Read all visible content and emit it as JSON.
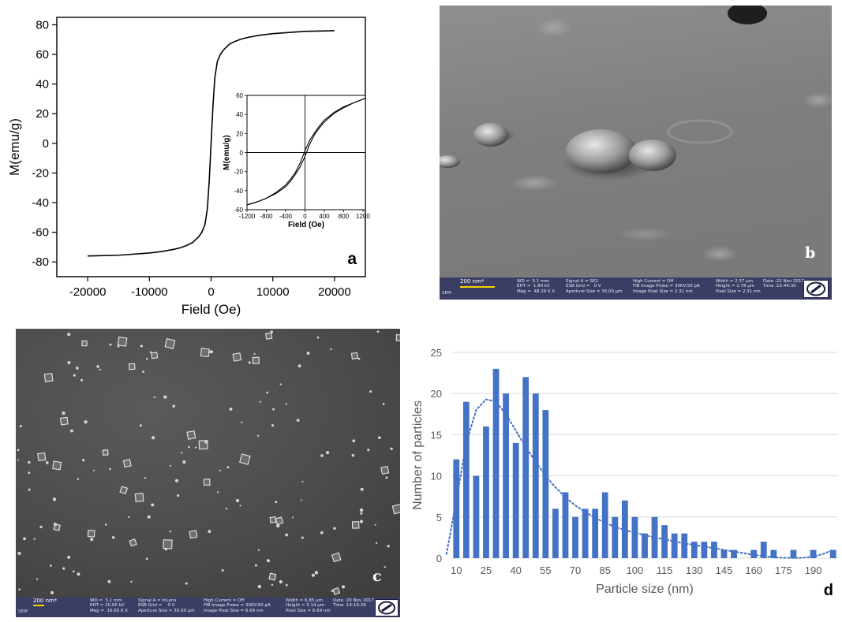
{
  "chart_data": [
    {
      "panel": "a",
      "type": "line",
      "xlabel": "Field (Oe)",
      "ylabel": "M(emu/g)",
      "xlim": [
        -25000,
        25000
      ],
      "ylim": [
        -90,
        85
      ],
      "x_ticks": [
        -20000,
        -10000,
        0,
        10000,
        20000
      ],
      "y_ticks": [
        -80,
        -60,
        -40,
        -20,
        0,
        20,
        40,
        60,
        80
      ],
      "x_tick_labels": [
        "-20000",
        "-10000",
        "0",
        "10000",
        "20000"
      ],
      "y_tick_labels": [
        "-80",
        "-60",
        "-40",
        "-20",
        "0",
        "20",
        "40",
        "60",
        "80"
      ],
      "series": [
        {
          "x": [
            -20000,
            -15000,
            -10000,
            -8000,
            -6000,
            -5000,
            -4000,
            -3000,
            -2000,
            -1500,
            -1000,
            -600,
            -300,
            0,
            300,
            600,
            1000,
            1500,
            2000,
            3000,
            4000,
            5000,
            6000,
            8000,
            10000,
            15000,
            20000
          ],
          "y": [
            -76,
            -75.5,
            -74,
            -73,
            -71.5,
            -70.5,
            -69,
            -67,
            -63,
            -60,
            -55,
            -44,
            -25,
            0,
            25,
            44,
            55,
            60,
            63,
            67,
            69,
            70.5,
            71.5,
            73,
            74,
            75.5,
            76
          ]
        }
      ],
      "inset": {
        "xlabel": "Field (Oe)",
        "ylabel": "M(emu/g)",
        "xlim": [
          -1200,
          1250
        ],
        "ylim": [
          -60,
          60
        ],
        "x_ticks": [
          -1200,
          -800,
          -400,
          0,
          400,
          800,
          1200
        ],
        "y_ticks": [
          -60,
          -40,
          -20,
          0,
          20,
          40,
          60
        ],
        "x_tick_labels": [
          "-1200",
          "-800",
          "-400",
          "0",
          "400",
          "800",
          "1200"
        ],
        "y_tick_labels": [
          "-60",
          "-40",
          "-20",
          "0",
          "20",
          "40",
          "60"
        ],
        "series": [
          {
            "x": [
              -1200,
              -1000,
              -800,
              -600,
              -400,
              -300,
              -200,
              -100,
              0,
              100,
              200,
              300,
              400,
              600,
              800,
              1000,
              1250
            ],
            "y": [
              -55,
              -52,
              -48,
              -42,
              -34,
              -28,
              -21,
              -11,
              2,
              13,
              21,
              28,
              34,
              42,
              48,
              52,
              57
            ]
          },
          {
            "x": [
              -1200,
              -1000,
              -800,
              -600,
              -400,
              -300,
              -200,
              -100,
              0,
              100,
              200,
              300,
              400,
              600,
              800,
              1000,
              1250
            ],
            "y": [
              -55,
              -52,
              -48,
              -43,
              -36,
              -30,
              -23,
              -15,
              -4,
              9,
              19,
              26,
              32,
              41,
              47,
              52,
              57
            ]
          }
        ]
      },
      "label": "a"
    },
    {
      "panel": "d",
      "type": "bar",
      "xlabel": "Particle size (nm)",
      "ylabel": "Number of particles",
      "ylim": [
        0,
        25
      ],
      "y_ticks": [
        0,
        5,
        10,
        15,
        20,
        25
      ],
      "y_tick_labels": [
        "0",
        "5",
        "10",
        "15",
        "20",
        "25"
      ],
      "x_tick_labels": [
        "10",
        "25",
        "40",
        "55",
        "70",
        "85",
        "100",
        "115",
        "130",
        "145",
        "160",
        "175",
        "190"
      ],
      "x": [
        10,
        15,
        20,
        25,
        30,
        35,
        40,
        45,
        50,
        55,
        60,
        65,
        70,
        75,
        80,
        85,
        90,
        95,
        100,
        105,
        110,
        115,
        120,
        125,
        130,
        135,
        140,
        145,
        150,
        155,
        160,
        165,
        170,
        175,
        180,
        185,
        190,
        195,
        200
      ],
      "values": [
        12,
        19,
        10,
        16,
        23,
        20,
        14,
        22,
        20,
        18,
        6,
        8,
        5,
        6,
        6,
        8,
        5,
        7,
        5,
        3,
        5,
        4,
        3,
        3,
        2,
        2,
        2,
        1,
        1,
        0,
        1,
        2,
        1,
        0,
        1,
        0,
        1,
        0,
        1
      ],
      "trend": {
        "style": "dotted",
        "x": [
          5,
          10,
          15,
          20,
          25,
          30,
          35,
          40,
          45,
          50,
          55,
          60,
          65,
          70,
          75,
          80,
          85,
          90,
          95,
          100,
          105,
          110,
          115,
          120,
          125,
          130,
          135,
          140,
          145,
          150,
          155,
          160,
          165,
          170,
          175,
          180,
          185,
          190,
          195,
          200
        ],
        "y": [
          0.5,
          7,
          14,
          18,
          19.3,
          19,
          17.5,
          15.5,
          13.5,
          11.7,
          10,
          8.6,
          7.4,
          6.4,
          5.6,
          4.9,
          4.3,
          3.8,
          3.4,
          3.1,
          2.8,
          2.5,
          2.3,
          2.0,
          1.8,
          1.6,
          1.4,
          1.2,
          1.0,
          0.8,
          0.6,
          0.4,
          0.25,
          0.1,
          0.05,
          0.02,
          0.05,
          0.2,
          0.5,
          1.0
        ]
      },
      "color": "#4472c4",
      "label": "d"
    }
  ],
  "sem_b": {
    "label": "b",
    "scale_label": "200 nm*",
    "tag": "SEM",
    "col1": "WD =  5.1 mm\nEHT =  1.80 kV\nMag =  48.29 K X",
    "col2": "Signal A = SE2\nESB Grid =   0 V\nAperture Size = 30.00 µm",
    "col3": "High Current = Off\nFIB Image Probe = 30KV:50 pA\nImage Pixel Size = 2.31 nm",
    "col4": "Width = 2.37 µm\nHeight = 1.78 µm\nPixel Size = 2.31 nm",
    "col5": "Date :22 Nov 2017\nTime :15:44:30"
  },
  "sem_c": {
    "label": "c",
    "scale_label": "200 nm*",
    "tag": "SEM",
    "col1": "WD =  5.1 mm\nEHT = 20.00 kV\nMag =  16.60 K X",
    "col2": "Signal A = InLens\nESB Grid =    0 V\nAperture Size = 30.00 µm",
    "col3": "High Current = Off\nFIB Image Probe = 30KV:50 pA\nImage Pixel Size = 6.69 nm",
    "col4": "Width = 6.85 µm\nHeight = 5.14 µm\nPixel Size = 6.69 nm",
    "col5": "Date :20 Nov 2017\nTime :14:16:29"
  }
}
